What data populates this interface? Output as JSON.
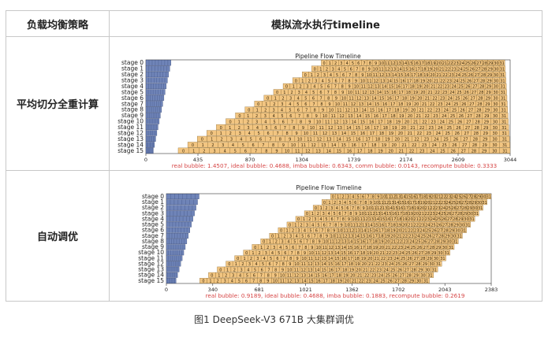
{
  "table": {
    "header_strategy": "负载均衡策略",
    "header_timeline": "模拟流水执行timeline"
  },
  "rows": [
    {
      "strategy": "平均切分全重计算"
    },
    {
      "strategy": "自动调优"
    }
  ],
  "chart_data": [
    {
      "type": "gantt",
      "title": "Pipeline Flow Timeline",
      "stages": [
        "stage 0",
        "stage 1",
        "stage 2",
        "stage 3",
        "stage 4",
        "stage 5",
        "stage 6",
        "stage 7",
        "stage 8",
        "stage 9",
        "stage 10",
        "stage 11",
        "stage 12",
        "stage 13",
        "stage 14",
        "stage 15"
      ],
      "xticks": [
        0,
        435,
        870,
        1304,
        1739,
        2174,
        2609,
        3044
      ],
      "xlim": [
        0,
        3044
      ],
      "microbatches": 32,
      "warmup_end": 210,
      "first_end": 3000,
      "last_start": 270,
      "last_end": 3044,
      "colors": {
        "forward": "#6f84b8",
        "backward": "#f2c581",
        "bubble_text": "#d64646"
      },
      "bubble_stats": "real bubble: 1.4507, ideal bubble: 0.4688, imba bubble: 0.6343, comm bubble: 0.0143, recompute bubble: 0.3333"
    },
    {
      "type": "gantt",
      "title": "Pipeline Flow Timeline",
      "stages": [
        "stage 0",
        "stage 1",
        "stage 2",
        "stage 3",
        "stage 4",
        "stage 5",
        "stage 6",
        "stage 7",
        "stage 8",
        "stage 9",
        "stage 10",
        "stage 11",
        "stage 12",
        "stage 13",
        "stage 14",
        "stage 15"
      ],
      "xticks": [
        0,
        340,
        681,
        1021,
        1362,
        1702,
        2043,
        2383
      ],
      "xlim": [
        0,
        2383
      ],
      "microbatches": 32,
      "warmup_end": 240,
      "first_end": 2383,
      "last_start": 245,
      "last_end": 1930,
      "colors": {
        "forward": "#6f84b8",
        "backward": "#f2c581",
        "bubble_text": "#d64646"
      },
      "bubble_stats": "real bubble: 0.9189, ideal bubble: 0.4688, imba bubble: 0.1883, recompute bubble: 0.2619"
    }
  ],
  "caption": "图1 DeepSeek-V3 671B 大集群调优"
}
